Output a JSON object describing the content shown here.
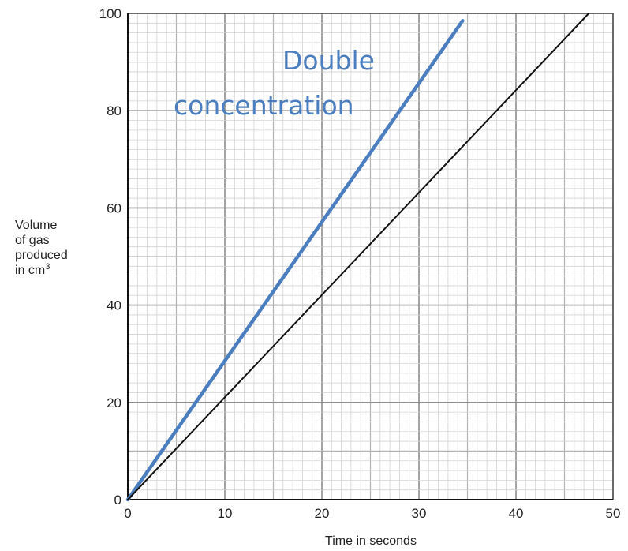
{
  "chart_data": {
    "type": "line",
    "title": "",
    "xlabel": "Time in seconds",
    "ylabel_lines": [
      "Volume",
      "of gas",
      "produced",
      "in cm"
    ],
    "ylabel_superscript": "3",
    "xlim": [
      0,
      50
    ],
    "ylim": [
      0,
      100
    ],
    "x_ticks": [
      "0",
      "10",
      "20",
      "30",
      "40",
      "50"
    ],
    "y_ticks": [
      "0",
      "20",
      "40",
      "60",
      "80",
      "100"
    ],
    "grid": true,
    "series": [
      {
        "x": [
          0,
          34.5
        ],
        "y": [
          0,
          98.5
        ],
        "color": "#4a7ebf"
      },
      {
        "x": [
          0,
          47.5
        ],
        "y": [
          0,
          100
        ],
        "color": "#111111"
      }
    ],
    "annotations": [
      "Double",
      "concentration"
    ],
    "annotation_color": "#4a7ebf"
  }
}
